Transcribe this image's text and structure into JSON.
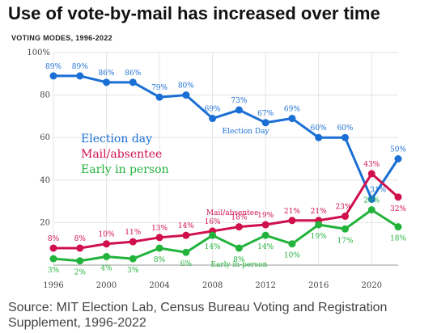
{
  "title": "Use of vote-by-mail has increased over time",
  "subtitle": "VOTING MODES, 1996-2022",
  "source": "Source: MIT Election Lab, Census Bureau Voting and Registration Supplement, 1996-2022",
  "chart_data": {
    "type": "line",
    "x": [
      1996,
      1998,
      2000,
      2002,
      2004,
      2006,
      2008,
      2010,
      2012,
      2014,
      2016,
      2018,
      2020,
      2022
    ],
    "x_ticks": [
      "1996",
      "2000",
      "2004",
      "2008",
      "2012",
      "2016",
      "2020"
    ],
    "x_tick_values": [
      1996,
      2000,
      2004,
      2008,
      2012,
      2016,
      2020
    ],
    "y_ticks": [
      "20",
      "40",
      "60",
      "80",
      "100%"
    ],
    "y_tick_values": [
      20,
      40,
      60,
      80,
      100
    ],
    "ylim": [
      0,
      100
    ],
    "xlim": [
      1996,
      2022
    ],
    "grid": true,
    "legend_position": "center-left",
    "series": [
      {
        "name": "Election day",
        "color": "#1a6fd4",
        "values": [
          89,
          89,
          86,
          86,
          79,
          80,
          69,
          73,
          67,
          69,
          60,
          60,
          31,
          50
        ],
        "labels": [
          "89%",
          "89%",
          "86%",
          "86%",
          "79%",
          "80%",
          "69%",
          "73%",
          "67%",
          "69%",
          "60%",
          "60%",
          "31%",
          "50%"
        ],
        "annotation": "Election Day"
      },
      {
        "name": "Mail/absentee",
        "color": "#d0104c",
        "values": [
          8,
          8,
          10,
          11,
          13,
          14,
          16,
          18,
          19,
          21,
          21,
          23,
          43,
          32
        ],
        "labels": [
          "8%",
          "8%",
          "10%",
          "11%",
          "13%",
          "14%",
          "16%",
          "18%",
          "19%",
          "21%",
          "21%",
          "23%",
          "43%",
          "32%"
        ],
        "annotation": "Mail/absentee"
      },
      {
        "name": "Early in person",
        "color": "#22b33c",
        "values": [
          3,
          2,
          4,
          3,
          8,
          6,
          14,
          8,
          14,
          10,
          19,
          17,
          26,
          18
        ],
        "labels": [
          "3%",
          "2%",
          "4%",
          "3%",
          "8%",
          "6%",
          "14%",
          "8%",
          "14%",
          "10%",
          "19%",
          "17%",
          "26%",
          "18%"
        ],
        "annotation": "Early in-person"
      }
    ]
  }
}
